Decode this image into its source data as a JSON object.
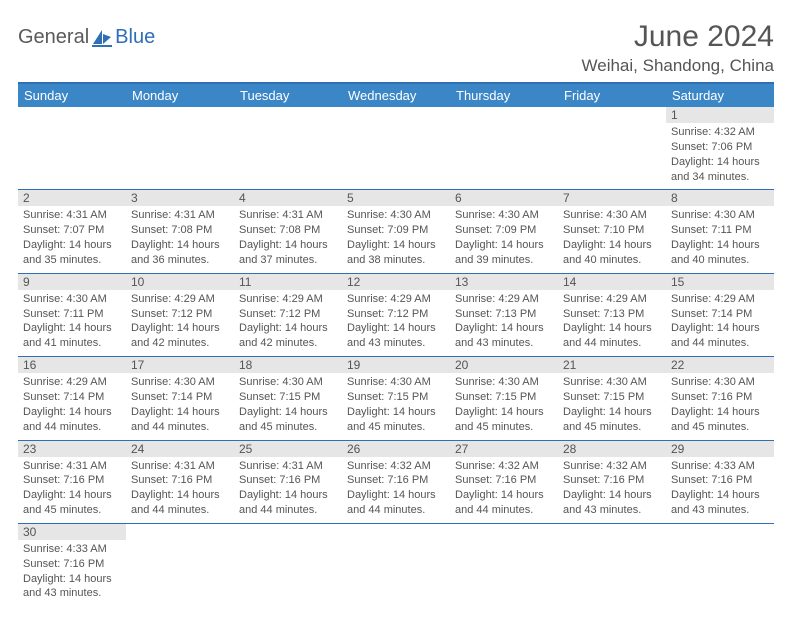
{
  "logo": {
    "part1": "General",
    "part2": "Blue"
  },
  "title": "June 2024",
  "location": "Weihai, Shandong, China",
  "header_bg": "#3b86c6",
  "border_color": "#2e6fb5",
  "daynum_bg": "#e6e6e6",
  "text_color": "#555555",
  "weekdays": [
    "Sunday",
    "Monday",
    "Tuesday",
    "Wednesday",
    "Thursday",
    "Friday",
    "Saturday"
  ],
  "weeks": [
    [
      null,
      null,
      null,
      null,
      null,
      null,
      {
        "n": "1",
        "sr": "Sunrise: 4:32 AM",
        "ss": "Sunset: 7:06 PM",
        "dl": "Daylight: 14 hours and 34 minutes."
      }
    ],
    [
      {
        "n": "2",
        "sr": "Sunrise: 4:31 AM",
        "ss": "Sunset: 7:07 PM",
        "dl": "Daylight: 14 hours and 35 minutes."
      },
      {
        "n": "3",
        "sr": "Sunrise: 4:31 AM",
        "ss": "Sunset: 7:08 PM",
        "dl": "Daylight: 14 hours and 36 minutes."
      },
      {
        "n": "4",
        "sr": "Sunrise: 4:31 AM",
        "ss": "Sunset: 7:08 PM",
        "dl": "Daylight: 14 hours and 37 minutes."
      },
      {
        "n": "5",
        "sr": "Sunrise: 4:30 AM",
        "ss": "Sunset: 7:09 PM",
        "dl": "Daylight: 14 hours and 38 minutes."
      },
      {
        "n": "6",
        "sr": "Sunrise: 4:30 AM",
        "ss": "Sunset: 7:09 PM",
        "dl": "Daylight: 14 hours and 39 minutes."
      },
      {
        "n": "7",
        "sr": "Sunrise: 4:30 AM",
        "ss": "Sunset: 7:10 PM",
        "dl": "Daylight: 14 hours and 40 minutes."
      },
      {
        "n": "8",
        "sr": "Sunrise: 4:30 AM",
        "ss": "Sunset: 7:11 PM",
        "dl": "Daylight: 14 hours and 40 minutes."
      }
    ],
    [
      {
        "n": "9",
        "sr": "Sunrise: 4:30 AM",
        "ss": "Sunset: 7:11 PM",
        "dl": "Daylight: 14 hours and 41 minutes."
      },
      {
        "n": "10",
        "sr": "Sunrise: 4:29 AM",
        "ss": "Sunset: 7:12 PM",
        "dl": "Daylight: 14 hours and 42 minutes."
      },
      {
        "n": "11",
        "sr": "Sunrise: 4:29 AM",
        "ss": "Sunset: 7:12 PM",
        "dl": "Daylight: 14 hours and 42 minutes."
      },
      {
        "n": "12",
        "sr": "Sunrise: 4:29 AM",
        "ss": "Sunset: 7:12 PM",
        "dl": "Daylight: 14 hours and 43 minutes."
      },
      {
        "n": "13",
        "sr": "Sunrise: 4:29 AM",
        "ss": "Sunset: 7:13 PM",
        "dl": "Daylight: 14 hours and 43 minutes."
      },
      {
        "n": "14",
        "sr": "Sunrise: 4:29 AM",
        "ss": "Sunset: 7:13 PM",
        "dl": "Daylight: 14 hours and 44 minutes."
      },
      {
        "n": "15",
        "sr": "Sunrise: 4:29 AM",
        "ss": "Sunset: 7:14 PM",
        "dl": "Daylight: 14 hours and 44 minutes."
      }
    ],
    [
      {
        "n": "16",
        "sr": "Sunrise: 4:29 AM",
        "ss": "Sunset: 7:14 PM",
        "dl": "Daylight: 14 hours and 44 minutes."
      },
      {
        "n": "17",
        "sr": "Sunrise: 4:30 AM",
        "ss": "Sunset: 7:14 PM",
        "dl": "Daylight: 14 hours and 44 minutes."
      },
      {
        "n": "18",
        "sr": "Sunrise: 4:30 AM",
        "ss": "Sunset: 7:15 PM",
        "dl": "Daylight: 14 hours and 45 minutes."
      },
      {
        "n": "19",
        "sr": "Sunrise: 4:30 AM",
        "ss": "Sunset: 7:15 PM",
        "dl": "Daylight: 14 hours and 45 minutes."
      },
      {
        "n": "20",
        "sr": "Sunrise: 4:30 AM",
        "ss": "Sunset: 7:15 PM",
        "dl": "Daylight: 14 hours and 45 minutes."
      },
      {
        "n": "21",
        "sr": "Sunrise: 4:30 AM",
        "ss": "Sunset: 7:15 PM",
        "dl": "Daylight: 14 hours and 45 minutes."
      },
      {
        "n": "22",
        "sr": "Sunrise: 4:30 AM",
        "ss": "Sunset: 7:16 PM",
        "dl": "Daylight: 14 hours and 45 minutes."
      }
    ],
    [
      {
        "n": "23",
        "sr": "Sunrise: 4:31 AM",
        "ss": "Sunset: 7:16 PM",
        "dl": "Daylight: 14 hours and 45 minutes."
      },
      {
        "n": "24",
        "sr": "Sunrise: 4:31 AM",
        "ss": "Sunset: 7:16 PM",
        "dl": "Daylight: 14 hours and 44 minutes."
      },
      {
        "n": "25",
        "sr": "Sunrise: 4:31 AM",
        "ss": "Sunset: 7:16 PM",
        "dl": "Daylight: 14 hours and 44 minutes."
      },
      {
        "n": "26",
        "sr": "Sunrise: 4:32 AM",
        "ss": "Sunset: 7:16 PM",
        "dl": "Daylight: 14 hours and 44 minutes."
      },
      {
        "n": "27",
        "sr": "Sunrise: 4:32 AM",
        "ss": "Sunset: 7:16 PM",
        "dl": "Daylight: 14 hours and 44 minutes."
      },
      {
        "n": "28",
        "sr": "Sunrise: 4:32 AM",
        "ss": "Sunset: 7:16 PM",
        "dl": "Daylight: 14 hours and 43 minutes."
      },
      {
        "n": "29",
        "sr": "Sunrise: 4:33 AM",
        "ss": "Sunset: 7:16 PM",
        "dl": "Daylight: 14 hours and 43 minutes."
      }
    ],
    [
      {
        "n": "30",
        "sr": "Sunrise: 4:33 AM",
        "ss": "Sunset: 7:16 PM",
        "dl": "Daylight: 14 hours and 43 minutes."
      },
      null,
      null,
      null,
      null,
      null,
      null
    ]
  ]
}
